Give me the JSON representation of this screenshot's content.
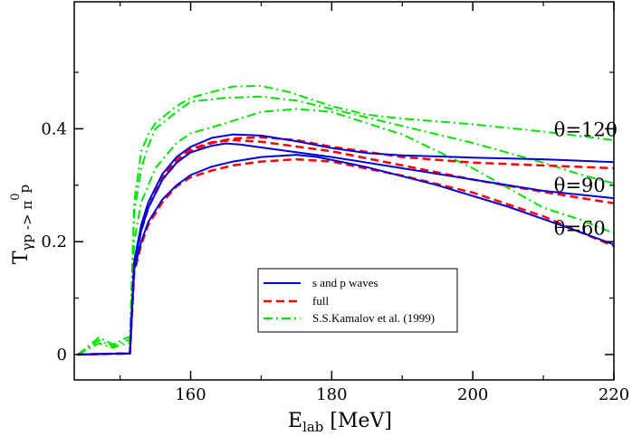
{
  "chart_data": {
    "type": "line",
    "title": "",
    "xlabel": {
      "main": "E",
      "sub": "lab",
      "rest": " [MeV]"
    },
    "ylabel": {
      "main": "T",
      "sub": "γp -> π",
      "sup": "0",
      "tail": "p"
    },
    "xlim": [
      143.5,
      220
    ],
    "ylim": [
      -0.045,
      0.625
    ],
    "xticks": [
      160,
      180,
      200,
      220
    ],
    "xtick_labels": [
      "160",
      "180",
      "200",
      "220"
    ],
    "yticks": [
      0.0,
      0.2,
      0.4
    ],
    "ytick_labels": [
      "0",
      "0.2",
      "0.4"
    ],
    "annotations": [
      {
        "text": "θ=120",
        "x": 211.5,
        "y": 0.387
      },
      {
        "text": "θ=90",
        "x": 211.5,
        "y": 0.288
      },
      {
        "text": "θ=60",
        "x": 211.5,
        "y": 0.212
      }
    ],
    "legend": {
      "position": "bottom-center",
      "entries": [
        "s and p waves",
        "full",
        "S.S.Kamalov et al. (1999)"
      ]
    },
    "colors": {
      "s_and_p": "#0000e0",
      "full": "#ff0000",
      "kamalov": "#00e600"
    },
    "series": [
      {
        "name": "s and p waves",
        "group": "s_and_p",
        "angle": "60",
        "style": "solid",
        "points": [
          [
            144,
            0
          ],
          [
            151.4,
            0.002
          ],
          [
            152,
            0.15
          ],
          [
            153,
            0.2
          ],
          [
            154,
            0.235
          ],
          [
            156,
            0.275
          ],
          [
            158,
            0.3
          ],
          [
            160,
            0.318
          ],
          [
            163,
            0.333
          ],
          [
            166,
            0.342
          ],
          [
            170,
            0.35
          ],
          [
            175,
            0.354
          ],
          [
            178,
            0.35
          ],
          [
            185,
            0.332
          ],
          [
            195,
            0.3
          ],
          [
            205,
            0.262
          ],
          [
            210,
            0.24
          ],
          [
            215,
            0.218
          ],
          [
            220,
            0.195
          ]
        ]
      },
      {
        "name": "full",
        "group": "full",
        "angle": "60",
        "style": "dashed",
        "points": [
          [
            144,
            0
          ],
          [
            151.4,
            0.002
          ],
          [
            152,
            0.145
          ],
          [
            153,
            0.195
          ],
          [
            154,
            0.23
          ],
          [
            156,
            0.27
          ],
          [
            158,
            0.298
          ],
          [
            160,
            0.314
          ],
          [
            163,
            0.326
          ],
          [
            166,
            0.335
          ],
          [
            170,
            0.342
          ],
          [
            175,
            0.346
          ],
          [
            180,
            0.342
          ],
          [
            190,
            0.317
          ],
          [
            200,
            0.287
          ],
          [
            210,
            0.245
          ],
          [
            215,
            0.218
          ],
          [
            220,
            0.192
          ]
        ]
      },
      {
        "name": "S.S.Kamalov et al. (1999)",
        "group": "kamalov",
        "angle": "60",
        "style": "dashdot",
        "points": [
          [
            144,
            0
          ],
          [
            147,
            0.02
          ],
          [
            149,
            0.012
          ],
          [
            151,
            0.02
          ],
          [
            151.4,
            0.02
          ],
          [
            152,
            0.2
          ],
          [
            153,
            0.27
          ],
          [
            154,
            0.3
          ],
          [
            155,
            0.33
          ],
          [
            158,
            0.375
          ],
          [
            160,
            0.392
          ],
          [
            165,
            0.41
          ],
          [
            170,
            0.43
          ],
          [
            175,
            0.435
          ],
          [
            180,
            0.43
          ],
          [
            190,
            0.39
          ],
          [
            200,
            0.33
          ],
          [
            210,
            0.26
          ],
          [
            215,
            0.24
          ],
          [
            220,
            0.215
          ]
        ]
      },
      {
        "name": "s and p waves",
        "group": "s_and_p",
        "angle": "90",
        "style": "solid",
        "points": [
          [
            144,
            0
          ],
          [
            151.4,
            0.002
          ],
          [
            152,
            0.16
          ],
          [
            153,
            0.22
          ],
          [
            154,
            0.26
          ],
          [
            156,
            0.31
          ],
          [
            158,
            0.34
          ],
          [
            160,
            0.358
          ],
          [
            163,
            0.37
          ],
          [
            165,
            0.374
          ],
          [
            167,
            0.372
          ],
          [
            170,
            0.367
          ],
          [
            180,
            0.35
          ],
          [
            190,
            0.33
          ],
          [
            200,
            0.31
          ],
          [
            210,
            0.29
          ],
          [
            220,
            0.277
          ]
        ]
      },
      {
        "name": "full",
        "group": "full",
        "angle": "90",
        "style": "dashed",
        "points": [
          [
            144,
            0
          ],
          [
            151.4,
            0.002
          ],
          [
            152,
            0.16
          ],
          [
            153,
            0.22
          ],
          [
            154,
            0.26
          ],
          [
            156,
            0.315
          ],
          [
            158,
            0.345
          ],
          [
            160,
            0.364
          ],
          [
            163,
            0.376
          ],
          [
            166,
            0.38
          ],
          [
            170,
            0.377
          ],
          [
            180,
            0.36
          ],
          [
            190,
            0.335
          ],
          [
            200,
            0.31
          ],
          [
            210,
            0.288
          ],
          [
            220,
            0.268
          ]
        ]
      },
      {
        "name": "S.S.Kamalov et al. (1999)",
        "group": "kamalov",
        "angle": "90",
        "style": "dashdot",
        "points": [
          [
            144,
            0
          ],
          [
            147,
            0.025
          ],
          [
            149,
            0.015
          ],
          [
            151,
            0.025
          ],
          [
            151.4,
            0.025
          ],
          [
            152,
            0.25
          ],
          [
            153,
            0.33
          ],
          [
            154,
            0.37
          ],
          [
            155,
            0.4
          ],
          [
            158,
            0.43
          ],
          [
            160,
            0.448
          ],
          [
            165,
            0.455
          ],
          [
            170,
            0.457
          ],
          [
            175,
            0.45
          ],
          [
            180,
            0.435
          ],
          [
            190,
            0.405
          ],
          [
            200,
            0.375
          ],
          [
            210,
            0.34
          ],
          [
            215,
            0.32
          ],
          [
            220,
            0.303
          ]
        ]
      },
      {
        "name": "s and p waves",
        "group": "s_and_p",
        "angle": "120",
        "style": "solid",
        "points": [
          [
            144,
            0
          ],
          [
            151.4,
            0.002
          ],
          [
            152,
            0.165
          ],
          [
            153,
            0.23
          ],
          [
            154,
            0.27
          ],
          [
            156,
            0.32
          ],
          [
            158,
            0.35
          ],
          [
            160,
            0.368
          ],
          [
            163,
            0.384
          ],
          [
            166,
            0.39
          ],
          [
            170,
            0.388
          ],
          [
            175,
            0.378
          ],
          [
            180,
            0.366
          ],
          [
            185,
            0.357
          ],
          [
            190,
            0.353
          ],
          [
            200,
            0.349
          ],
          [
            210,
            0.346
          ],
          [
            220,
            0.341
          ]
        ]
      },
      {
        "name": "full",
        "group": "full",
        "angle": "120",
        "style": "dashed",
        "points": [
          [
            144,
            0
          ],
          [
            151.4,
            0.002
          ],
          [
            152,
            0.16
          ],
          [
            153,
            0.22
          ],
          [
            154,
            0.26
          ],
          [
            156,
            0.31
          ],
          [
            158,
            0.34
          ],
          [
            160,
            0.36
          ],
          [
            163,
            0.375
          ],
          [
            166,
            0.383
          ],
          [
            170,
            0.385
          ],
          [
            175,
            0.38
          ],
          [
            180,
            0.368
          ],
          [
            190,
            0.35
          ],
          [
            200,
            0.34
          ],
          [
            210,
            0.335
          ],
          [
            220,
            0.33
          ]
        ]
      },
      {
        "name": "S.S.Kamalov et al. (1999)",
        "group": "kamalov",
        "angle": "120",
        "style": "dashdot",
        "points": [
          [
            144,
            0
          ],
          [
            147,
            0.03
          ],
          [
            149,
            0.018
          ],
          [
            151,
            0.03
          ],
          [
            151.4,
            0.03
          ],
          [
            152,
            0.27
          ],
          [
            153,
            0.36
          ],
          [
            154,
            0.39
          ],
          [
            155,
            0.41
          ],
          [
            158,
            0.44
          ],
          [
            160,
            0.455
          ],
          [
            163,
            0.465
          ],
          [
            166,
            0.475
          ],
          [
            170,
            0.476
          ],
          [
            174,
            0.465
          ],
          [
            180,
            0.44
          ],
          [
            185,
            0.425
          ],
          [
            190,
            0.418
          ],
          [
            200,
            0.408
          ],
          [
            210,
            0.395
          ],
          [
            220,
            0.38
          ]
        ]
      }
    ]
  }
}
